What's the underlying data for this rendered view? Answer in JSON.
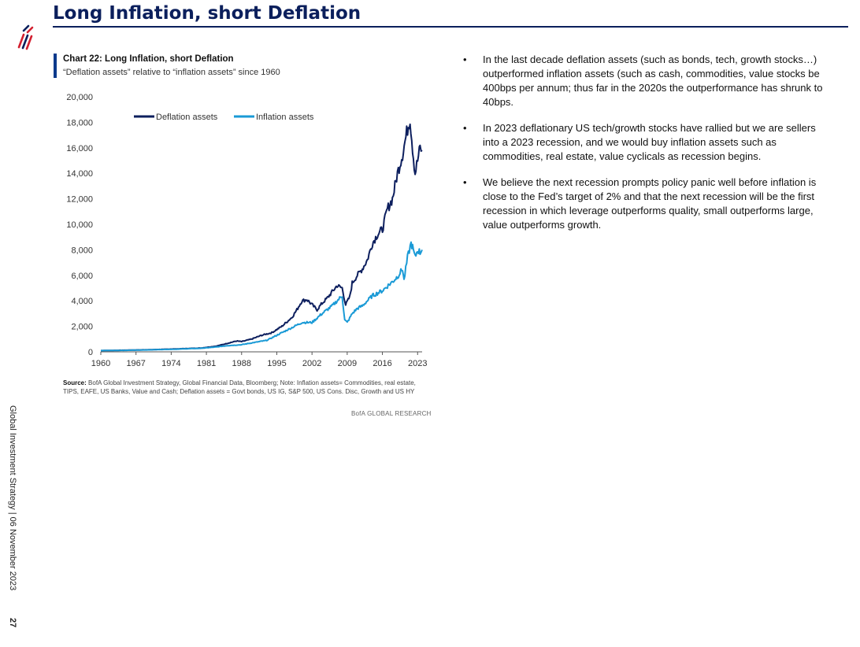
{
  "page": {
    "title": "Long Inflation, short Deflation",
    "side_text": "Global Investment Strategy | 06 November 2023",
    "page_number": "27"
  },
  "colors": {
    "navy": "#0b1f5c",
    "deflation": "#0d1f5e",
    "inflation": "#1a9ad6",
    "logo_red": "#d32030"
  },
  "chart_data": {
    "type": "line",
    "title": "Chart 22: Long Inflation, short Deflation",
    "subtitle": "“Deflation assets” relative to “inflation assets” since 1960",
    "xlabel": "",
    "ylabel": "",
    "xlim": [
      1960,
      2023.9
    ],
    "ylim": [
      0,
      20000
    ],
    "x_ticks": [
      1960,
      1967,
      1974,
      1981,
      1988,
      1995,
      2002,
      2009,
      2016,
      2023
    ],
    "y_ticks": [
      0,
      2000,
      4000,
      6000,
      8000,
      10000,
      12000,
      14000,
      16000,
      18000,
      20000
    ],
    "y_tick_labels": [
      "0",
      "2,000",
      "4,000",
      "6,000",
      "8,000",
      "10,000",
      "12,000",
      "14,000",
      "16,000",
      "18,000",
      "20,000"
    ],
    "grid": false,
    "legend_position": "top",
    "series": [
      {
        "name": "Deflation assets",
        "color": "#0d1f5e",
        "points": [
          [
            1960,
            100
          ],
          [
            1965,
            130
          ],
          [
            1970,
            170
          ],
          [
            1975,
            230
          ],
          [
            1980,
            300
          ],
          [
            1983,
            450
          ],
          [
            1985,
            650
          ],
          [
            1987,
            850
          ],
          [
            1988,
            800
          ],
          [
            1990,
            1000
          ],
          [
            1992,
            1300
          ],
          [
            1994,
            1500
          ],
          [
            1996,
            2000
          ],
          [
            1998,
            2700
          ],
          [
            1999,
            3300
          ],
          [
            2000,
            4000
          ],
          [
            2001,
            4100
          ],
          [
            2002,
            3700
          ],
          [
            2003,
            3300
          ],
          [
            2004,
            3800
          ],
          [
            2005,
            4200
          ],
          [
            2006,
            4700
          ],
          [
            2007,
            5200
          ],
          [
            2008,
            5000
          ],
          [
            2008.7,
            3700
          ],
          [
            2009.5,
            4300
          ],
          [
            2010,
            5400
          ],
          [
            2011,
            6000
          ],
          [
            2012,
            6500
          ],
          [
            2013,
            7200
          ],
          [
            2014,
            8500
          ],
          [
            2015,
            9200
          ],
          [
            2016,
            9600
          ],
          [
            2017,
            11200
          ],
          [
            2018,
            12000
          ],
          [
            2019,
            14000
          ],
          [
            2020,
            15500
          ],
          [
            2020.5,
            16500
          ],
          [
            2021,
            17500
          ],
          [
            2021.5,
            18300
          ],
          [
            2022,
            16000
          ],
          [
            2022.5,
            14000
          ],
          [
            2023,
            15000
          ],
          [
            2023.5,
            16000
          ],
          [
            2023.9,
            15800
          ]
        ]
      },
      {
        "name": "Inflation assets",
        "color": "#1a9ad6",
        "points": [
          [
            1960,
            100
          ],
          [
            1965,
            120
          ],
          [
            1970,
            160
          ],
          [
            1975,
            210
          ],
          [
            1980,
            280
          ],
          [
            1983,
            380
          ],
          [
            1985,
            480
          ],
          [
            1988,
            560
          ],
          [
            1990,
            700
          ],
          [
            1993,
            900
          ],
          [
            1996,
            1500
          ],
          [
            1998,
            1900
          ],
          [
            2000,
            2300
          ],
          [
            2002,
            2300
          ],
          [
            2004,
            3000
          ],
          [
            2006,
            3600
          ],
          [
            2007,
            4000
          ],
          [
            2008,
            4400
          ],
          [
            2008.5,
            2500
          ],
          [
            2009,
            2300
          ],
          [
            2010,
            3000
          ],
          [
            2011,
            3400
          ],
          [
            2012,
            3600
          ],
          [
            2014,
            4400
          ],
          [
            2016,
            4800
          ],
          [
            2018,
            5500
          ],
          [
            2019,
            5900
          ],
          [
            2020,
            6500
          ],
          [
            2020.3,
            5600
          ],
          [
            2021,
            7400
          ],
          [
            2021.7,
            8500
          ],
          [
            2022,
            8200
          ],
          [
            2022.5,
            7400
          ],
          [
            2023,
            8000
          ],
          [
            2023.5,
            7800
          ],
          [
            2023.9,
            8000
          ]
        ]
      }
    ]
  },
  "source": {
    "label": "Source:",
    "text": "BofA Global Investment Strategy, Global Financial Data, Bloomberg; Note: Inflation assets= Commodities, real estate, TIPS, EAFE, US Banks, Value and Cash; Deflation assets = Govt bonds, US IG, S&P 500, US Cons. Disc, Growth and US HY"
  },
  "credit": "BofA GLOBAL RESEARCH",
  "bullets": [
    "In the last decade deflation assets (such as bonds, tech, growth stocks…) outperformed inflation assets (such as cash, commodities, value stocks be 400bps per annum; thus far in the 2020s the outperformance has shrunk to 40bps.",
    "In 2023 deflationary US tech/growth stocks have rallied but we are sellers into a 2023 recession, and we would buy inflation assets such as commodities, real estate, value cyclicals as recession begins.",
    "We believe the next recession prompts policy panic well before inflation is close to the Fed’s target of 2% and that the next recession will be the first recession in which leverage outperforms quality, small outperforms large, value outperforms growth."
  ],
  "bullet_symbol": "•"
}
